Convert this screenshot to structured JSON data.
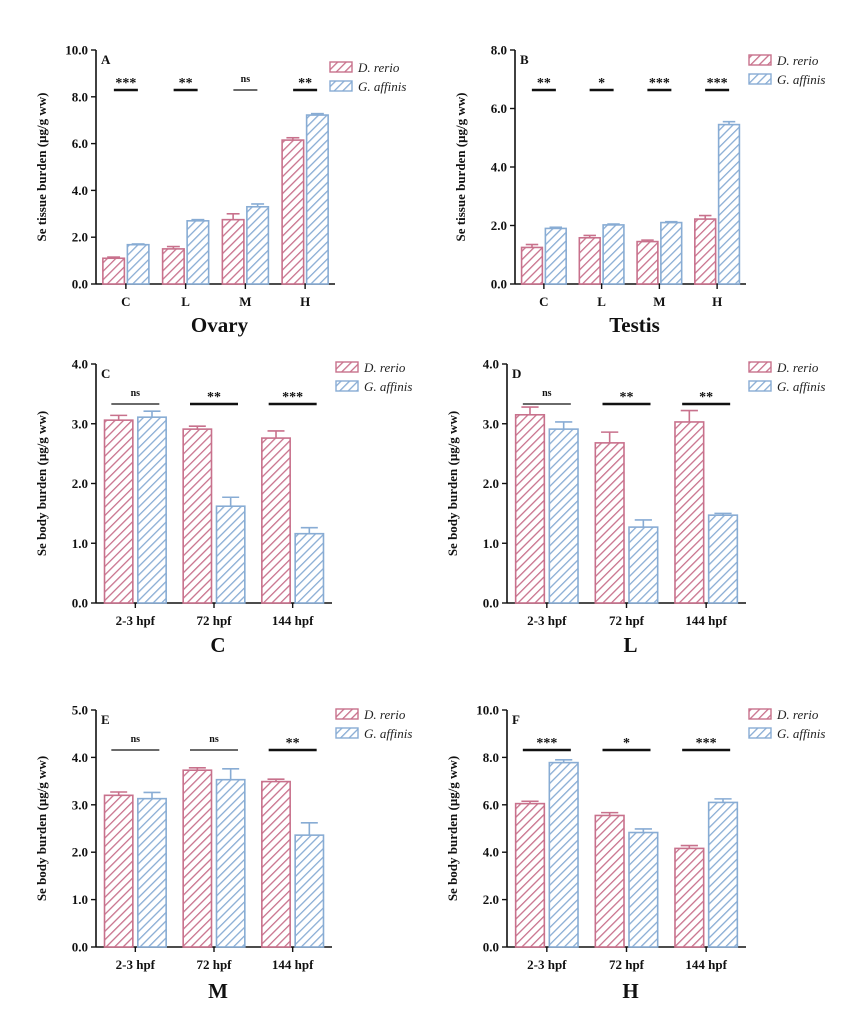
{
  "colors": {
    "series1": "#c8718c",
    "series2": "#88acd4",
    "axis": "#111111"
  },
  "chart_data": [
    {
      "type": "bar",
      "panel_label": "A",
      "title": "Ovary",
      "ylabel": "Se tissue burden (μg/g ww)",
      "ylim": [
        0,
        10
      ],
      "yticks": [
        "0.0",
        "2.0",
        "4.0",
        "6.0",
        "8.0",
        "10.0"
      ],
      "categories": [
        "C",
        "L",
        "M",
        "H"
      ],
      "series": [
        {
          "name": "D. rerio",
          "values": [
            1.1,
            1.5,
            2.75,
            6.15
          ],
          "errors": [
            0.05,
            0.1,
            0.25,
            0.1
          ]
        },
        {
          "name": "G. affinis",
          "values": [
            1.68,
            2.7,
            3.3,
            7.22
          ],
          "errors": [
            0.03,
            0.05,
            0.12,
            0.06
          ]
        }
      ],
      "significance": [
        "***",
        "**",
        "ns",
        "**"
      ]
    },
    {
      "type": "bar",
      "panel_label": "B",
      "title": "Testis",
      "ylabel": "Se tissue burden (μg/g ww)",
      "ylim": [
        0,
        8
      ],
      "yticks": [
        "0.0",
        "2.0",
        "4.0",
        "6.0",
        "8.0"
      ],
      "categories": [
        "C",
        "L",
        "M",
        "H"
      ],
      "series": [
        {
          "name": "D. rerio",
          "values": [
            1.25,
            1.58,
            1.45,
            2.22
          ],
          "errors": [
            0.1,
            0.08,
            0.05,
            0.12
          ]
        },
        {
          "name": "G. affinis",
          "values": [
            1.9,
            2.02,
            2.1,
            5.45
          ],
          "errors": [
            0.04,
            0.03,
            0.03,
            0.1
          ]
        }
      ],
      "significance": [
        "**",
        "*",
        "***",
        "***"
      ]
    },
    {
      "type": "bar",
      "panel_label": "C",
      "title": "C",
      "ylabel": "Se body burden (μg/g ww)",
      "ylim": [
        0,
        4
      ],
      "yticks": [
        "0.0",
        "1.0",
        "2.0",
        "3.0",
        "4.0"
      ],
      "categories": [
        "2-3 hpf",
        "72 hpf",
        "144 hpf"
      ],
      "series": [
        {
          "name": "D. rerio",
          "values": [
            3.06,
            2.91,
            2.76
          ],
          "errors": [
            0.08,
            0.05,
            0.12
          ]
        },
        {
          "name": "G. affinis",
          "values": [
            3.11,
            1.62,
            1.16
          ],
          "errors": [
            0.1,
            0.15,
            0.1
          ]
        }
      ],
      "significance": [
        "ns",
        "**",
        "***"
      ]
    },
    {
      "type": "bar",
      "panel_label": "D",
      "title": "L",
      "ylabel": "Se body burden (μg/g ww)",
      "ylim": [
        0,
        4
      ],
      "yticks": [
        "0.0",
        "1.0",
        "2.0",
        "3.0",
        "4.0"
      ],
      "categories": [
        "2-3 hpf",
        "72 hpf",
        "144 hpf"
      ],
      "series": [
        {
          "name": "D. rerio",
          "values": [
            3.15,
            2.68,
            3.03
          ],
          "errors": [
            0.13,
            0.18,
            0.19
          ]
        },
        {
          "name": "G. affinis",
          "values": [
            2.91,
            1.27,
            1.47
          ],
          "errors": [
            0.12,
            0.12,
            0.03
          ]
        }
      ],
      "significance": [
        "ns",
        "**",
        "**"
      ]
    },
    {
      "type": "bar",
      "panel_label": "E",
      "title": "M",
      "ylabel": "Se body burden (μg/g ww)",
      "ylim": [
        0,
        5
      ],
      "yticks": [
        "0.0",
        "1.0",
        "2.0",
        "3.0",
        "4.0",
        "5.0"
      ],
      "categories": [
        "2-3 hpf",
        "72 hpf",
        "144 hpf"
      ],
      "series": [
        {
          "name": "D. rerio",
          "values": [
            3.2,
            3.73,
            3.49
          ],
          "errors": [
            0.07,
            0.05,
            0.05
          ]
        },
        {
          "name": "G. affinis",
          "values": [
            3.13,
            3.53,
            2.36
          ],
          "errors": [
            0.13,
            0.23,
            0.26
          ]
        }
      ],
      "significance": [
        "ns",
        "ns",
        "**"
      ]
    },
    {
      "type": "bar",
      "panel_label": "F",
      "title": "H",
      "ylabel": "Se body burden (μg/g ww)",
      "ylim": [
        0,
        10
      ],
      "yticks": [
        "0.0",
        "2.0",
        "4.0",
        "6.0",
        "8.0",
        "10.0"
      ],
      "categories": [
        "2-3 hpf",
        "72 hpf",
        "144 hpf"
      ],
      "series": [
        {
          "name": "D. rerio",
          "values": [
            6.05,
            5.55,
            4.16
          ],
          "errors": [
            0.1,
            0.12,
            0.12
          ]
        },
        {
          "name": "G. affinis",
          "values": [
            7.78,
            4.83,
            6.1
          ],
          "errors": [
            0.12,
            0.15,
            0.15
          ]
        }
      ],
      "significance": [
        "***",
        "*",
        "***"
      ]
    }
  ]
}
